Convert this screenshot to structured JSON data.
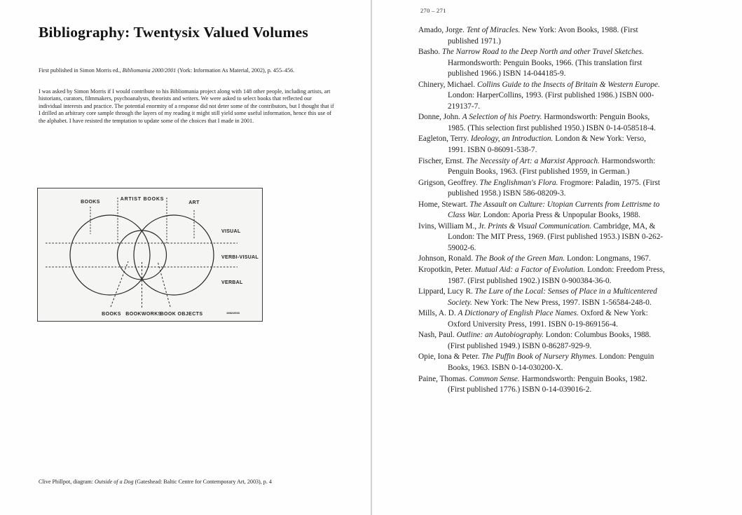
{
  "left_page": {
    "title": "Bibliography: Twentysix Valued Volumes",
    "pub_note_segments": [
      {
        "t": "First published in Simon Morris ed., ",
        "i": false
      },
      {
        "t": "Bibliomania 2000/2001",
        "i": true
      },
      {
        "t": " (York: Information As Material, 2002), p. 455–456.",
        "i": false
      }
    ],
    "intro": "I was asked by Simon Morris if I would contribute to his Bibliomania project along with 148 other people, including artists, art historians, curators, filmmakers, psychoanalysts, theorists and writers. We were asked to select books that reflected our individual interests and practice. The potential enormity of a response did not deter some of the contributors, but I thought that if I drilled an arbitrary core sample through the layers of my reading it might still yield some useful information, hence this use of the alphabet. I have resisted the temptation to update some of the choices that I made in 2001.",
    "diagram": {
      "top_labels": [
        "BOOKS",
        "ARTIST BOOKS",
        "ART"
      ],
      "right_labels": [
        "VISUAL",
        "VERBI-VISUAL",
        "VERBAL"
      ],
      "bottom_labels": [
        "BOOKS",
        "BOOKWORKS",
        "BOOK OBJECTS"
      ],
      "mark": "1982/2003"
    },
    "caption_segments": [
      {
        "t": "Clive Phillpot, diagram: ",
        "i": false
      },
      {
        "t": "Outside of a Dog",
        "i": true
      },
      {
        "t": " (Gateshead: Baltic Centre for Contemporary Art, 2003), p. 4",
        "i": false
      }
    ]
  },
  "right_page": {
    "page_number": "270 – 271",
    "entries": [
      [
        {
          "t": "Amado, Jorge. ",
          "i": false
        },
        {
          "t": "Tent of Miracles.",
          "i": true
        },
        {
          "t": " New York: Avon Books, 1988. (First published 1971.)",
          "i": false
        }
      ],
      [
        {
          "t": "Basho. ",
          "i": false
        },
        {
          "t": "The Narrow Road to the Deep North and other Travel Sketches.",
          "i": true
        },
        {
          "t": " Harmondsworth: Penguin Books, 1966. (This translation first published 1966.) ISBN 14-044185-9.",
          "i": false
        }
      ],
      [
        {
          "t": "Chinery, Michael. ",
          "i": false
        },
        {
          "t": "Collins Guide to the Insects of Britain & Western Europe.",
          "i": true
        },
        {
          "t": " London: HarperCollins, 1993. (First published 1986.) ISBN 000-219137-7.",
          "i": false
        }
      ],
      [
        {
          "t": "Donne, John. ",
          "i": false
        },
        {
          "t": "A Selection of his Poetry.",
          "i": true
        },
        {
          "t": " Harmondsworth: Penguin Books, 1985. (This selection first published 1950.) ISBN 0-14-058518-4.",
          "i": false
        }
      ],
      [
        {
          "t": "Eagleton, Terry. ",
          "i": false
        },
        {
          "t": "Ideology, an Introduction.",
          "i": true
        },
        {
          "t": " London & New York: Verso, 1991. ISBN 0-86091-538-7.",
          "i": false
        }
      ],
      [
        {
          "t": "Fischer, Ernst. ",
          "i": false
        },
        {
          "t": "The Necessity of Art: a Marxist Approach.",
          "i": true
        },
        {
          "t": " Harmondsworth: Penguin Books, 1963. (First published 1959, in German.)",
          "i": false
        }
      ],
      [
        {
          "t": "Grigson, Geoffrey. ",
          "i": false
        },
        {
          "t": "The Englishman's Flora.",
          "i": true
        },
        {
          "t": " Frogmore: Paladin, 1975. (First published 1958.) ISBN 586-08209-3.",
          "i": false
        }
      ],
      [
        {
          "t": "Home, Stewart. ",
          "i": false
        },
        {
          "t": "The Assault on Culture: Utopian Currents from Lettrisme to Class War.",
          "i": true
        },
        {
          "t": " London: Aporia Press & Unpopular Books, 1988.",
          "i": false
        }
      ],
      [
        {
          "t": "Ivins, William M., Jr. ",
          "i": false
        },
        {
          "t": "Prints & Visual Communication.",
          "i": true
        },
        {
          "t": " Cambridge, MA, & London: The MIT Press, 1969. (First published 1953.) ISBN 0-262-59002-6.",
          "i": false
        }
      ],
      [
        {
          "t": "Johnson, Ronald. ",
          "i": false
        },
        {
          "t": "The Book of the Green Man.",
          "i": true
        },
        {
          "t": " London: Longmans, 1967.",
          "i": false
        }
      ],
      [
        {
          "t": "Kropotkin, Peter. ",
          "i": false
        },
        {
          "t": "Mutual Aid: a Factor of Evolution.",
          "i": true
        },
        {
          "t": " London: Freedom Press, 1987. (First published 1902.) ISBN 0-900384-36-0.",
          "i": false
        }
      ],
      [
        {
          "t": "Lippard, Lucy R. ",
          "i": false
        },
        {
          "t": "The Lure of the Local: Senses of Place in a Multicentered Society.",
          "i": true
        },
        {
          "t": " New York: The New Press, 1997. ISBN 1-56584-248-0.",
          "i": false
        }
      ],
      [
        {
          "t": "Mills, A. D. ",
          "i": false
        },
        {
          "t": "A Dictionary of English Place Names.",
          "i": true
        },
        {
          "t": " Oxford & New York: Oxford University Press, 1991. ISBN 0-19-869156-4.",
          "i": false
        }
      ],
      [
        {
          "t": "Nash, Paul. ",
          "i": false
        },
        {
          "t": "Outline: an Autobiography.",
          "i": true
        },
        {
          "t": " London: Columbus Books, 1988. (First published 1949.) ISBN 0-86287-929-9.",
          "i": false
        }
      ],
      [
        {
          "t": "Opie, Iona & Peter. ",
          "i": false
        },
        {
          "t": "The Puffin Book of Nursery Rhymes.",
          "i": true
        },
        {
          "t": " London: Penguin Books, 1963. ISBN 0-14-030200-X.",
          "i": false
        }
      ],
      [
        {
          "t": "Paine, Thomas. ",
          "i": false
        },
        {
          "t": "Common Sense.",
          "i": true
        },
        {
          "t": " Harmondsworth: Penguin Books, 1982. (First published 1776.) ISBN 0-14-039016-2.",
          "i": false
        }
      ]
    ]
  }
}
